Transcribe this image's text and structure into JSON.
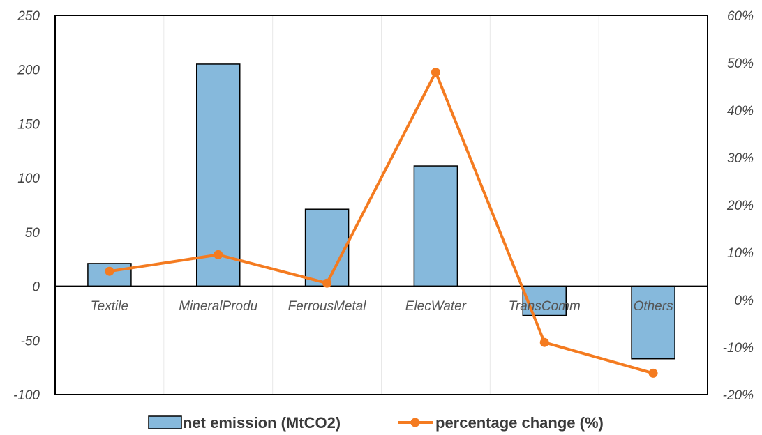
{
  "chart_data": {
    "type": "bar",
    "categories": [
      "Textile",
      "MineralProdu",
      "FerrousMetal",
      "ElecWater",
      "TransComm",
      "Others"
    ],
    "series": [
      {
        "name": "net emission (MtCO2)",
        "type": "bar",
        "axis": "left",
        "values": [
          21,
          205,
          71,
          111,
          -27,
          -67
        ],
        "color": "#86b9dc"
      },
      {
        "name": "percentage change (%)",
        "type": "line",
        "axis": "right",
        "values": [
          6,
          9.5,
          3.5,
          48,
          -9,
          -15.5
        ],
        "color": "#f47b20"
      }
    ],
    "left_axis": {
      "ylim": [
        -100,
        250
      ],
      "ticks": [
        250,
        200,
        150,
        100,
        50,
        0,
        -50,
        -100
      ],
      "tick_labels": [
        "250",
        "200",
        "150",
        "100",
        "50",
        "0",
        "-50",
        "-100"
      ]
    },
    "right_axis": {
      "ylim": [
        -20,
        60
      ],
      "ticks": [
        60,
        50,
        40,
        30,
        20,
        10,
        0,
        -10,
        -20
      ],
      "tick_labels": [
        "60%",
        "50%",
        "40%",
        "30%",
        "20%",
        "10%",
        "0%",
        "-10%",
        "-20%"
      ]
    },
    "legend_position": "bottom",
    "grid": "vertical"
  }
}
